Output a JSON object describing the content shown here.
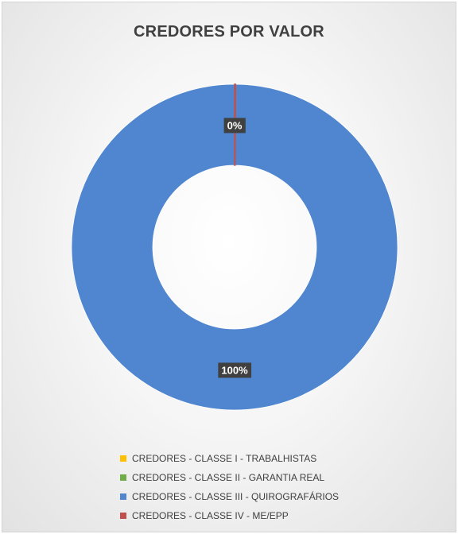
{
  "chart_data": {
    "type": "pie",
    "variant": "donut",
    "title": "CREDORES POR VALOR",
    "series": [
      {
        "name": "CREDORES POR VALOR",
        "categories": [
          "CREDORES - CLASSE I - TRABALHISTAS",
          "CREDORES - CLASSE II - GARANTIA REAL",
          "CREDORES - CLASSE III - QUIROGRAFÁRIOS",
          "CREDORES - CLASSE IV - ME/EPP"
        ],
        "values": [
          0,
          0,
          99.9,
          0.1
        ],
        "colors": [
          "#ffc000",
          "#70ad47",
          "#4f86cf",
          "#c0504d"
        ]
      }
    ],
    "data_labels": [
      {
        "category": "CREDORES - CLASSE III - QUIROGRAFÁRIOS",
        "text": "100%"
      },
      {
        "category": "CREDORES - CLASSE IV - ME/EPP",
        "text": "0%"
      }
    ],
    "legend": {
      "position": "bottom",
      "entries": [
        {
          "label": "CREDORES - CLASSE I - TRABALHISTAS",
          "color": "#ffc000"
        },
        {
          "label": "CREDORES - CLASSE II - GARANTIA REAL",
          "color": "#70ad47"
        },
        {
          "label": "CREDORES - CLASSE III - QUIROGRAFÁRIOS",
          "color": "#4f86cf"
        },
        {
          "label": "CREDORES - CLASSE IV - ME/EPP",
          "color": "#c0504d"
        }
      ]
    }
  }
}
